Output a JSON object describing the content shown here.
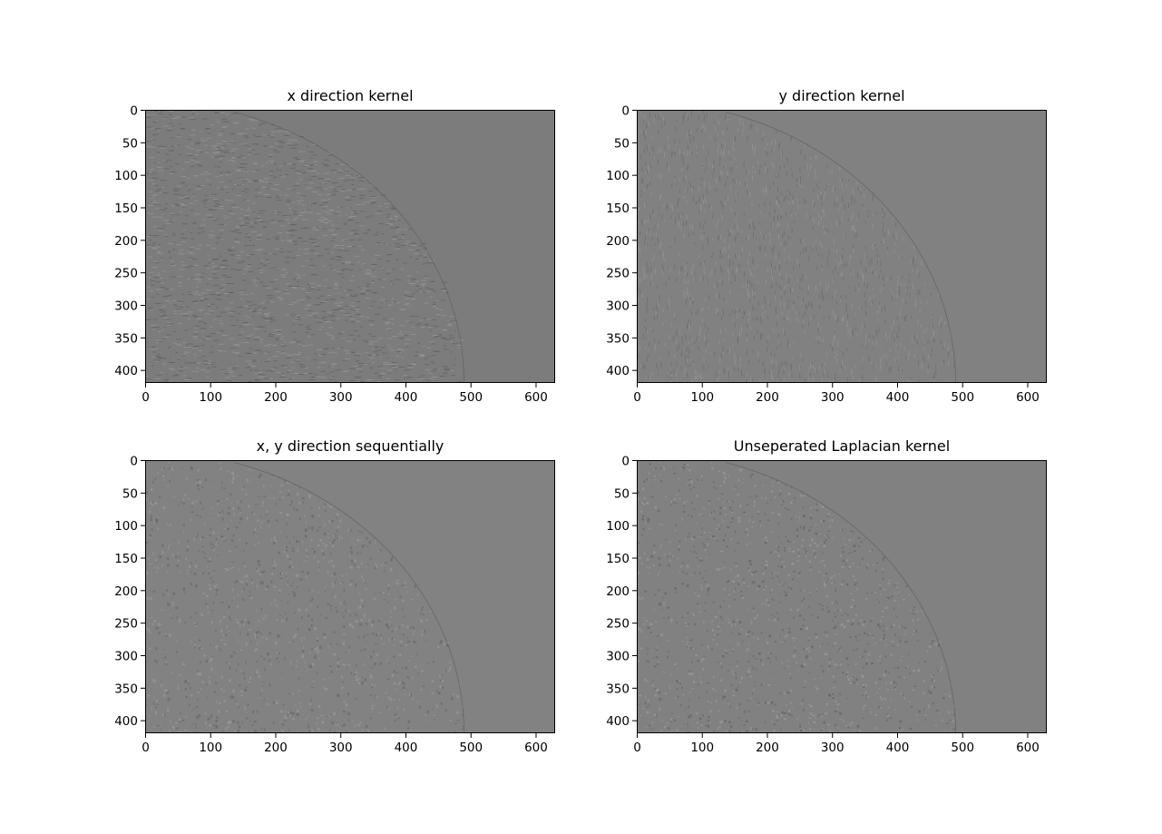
{
  "figure": {
    "background": "#ffffff",
    "colormap": "gray"
  },
  "panels": [
    {
      "title": "x direction kernel",
      "x_ticks": [
        "0",
        "100",
        "200",
        "300",
        "400",
        "500",
        "600"
      ],
      "y_ticks": [
        "0",
        "50",
        "100",
        "150",
        "200",
        "250",
        "300",
        "350",
        "400"
      ],
      "base_color": "#7c7c7c",
      "texture": "horizontal streak noise inside quarter-disc region"
    },
    {
      "title": "y direction kernel",
      "x_ticks": [
        "0",
        "100",
        "200",
        "300",
        "400",
        "500",
        "600"
      ],
      "y_ticks": [
        "0",
        "50",
        "100",
        "150",
        "200",
        "250",
        "300",
        "350",
        "400"
      ],
      "base_color": "#818181",
      "texture": "vertical streak noise inside quarter-disc region"
    },
    {
      "title": "x, y direction sequentially",
      "x_ticks": [
        "0",
        "100",
        "200",
        "300",
        "400",
        "500",
        "600"
      ],
      "y_ticks": [
        "0",
        "50",
        "100",
        "150",
        "200",
        "250",
        "300",
        "350",
        "400"
      ],
      "base_color": "#828282",
      "texture": "fine mixed noise inside quarter-disc region"
    },
    {
      "title": "Unseperated Laplacian kernel",
      "x_ticks": [
        "0",
        "100",
        "200",
        "300",
        "400",
        "500",
        "600"
      ],
      "y_ticks": [
        "0",
        "50",
        "100",
        "150",
        "200",
        "250",
        "300",
        "350",
        "400"
      ],
      "base_color": "#818181",
      "texture": "speckle noise inside quarter-disc region"
    }
  ]
}
